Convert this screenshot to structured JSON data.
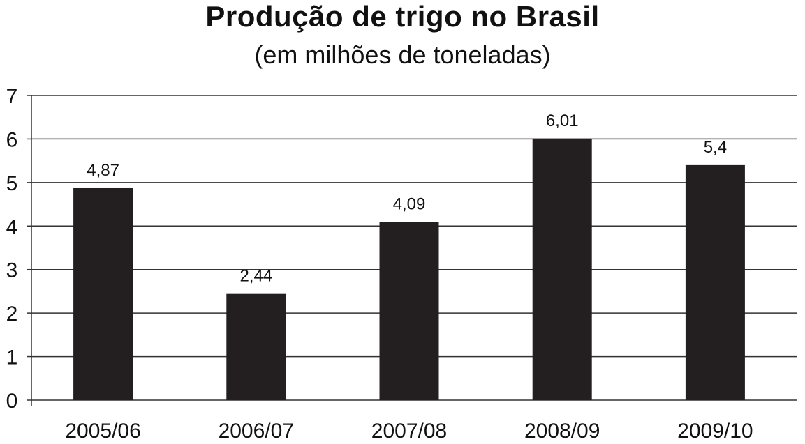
{
  "chart_data": {
    "type": "bar",
    "title": "Produção de trigo no Brasil",
    "subtitle": "(em milhões de toneladas)",
    "categories": [
      "2005/06",
      "2006/07",
      "2007/08",
      "2008/09",
      "2009/10"
    ],
    "values": [
      4.87,
      2.44,
      4.09,
      6.01,
      5.4
    ],
    "value_labels": [
      "4,87",
      "2,44",
      "4,09",
      "6,01",
      "5,4"
    ],
    "yticks": [
      "0",
      "1",
      "2",
      "3",
      "4",
      "5",
      "6",
      "7"
    ],
    "ylim": [
      0,
      7
    ],
    "grid": true,
    "bar_color": "#231f20",
    "xlabel": "",
    "ylabel": ""
  }
}
